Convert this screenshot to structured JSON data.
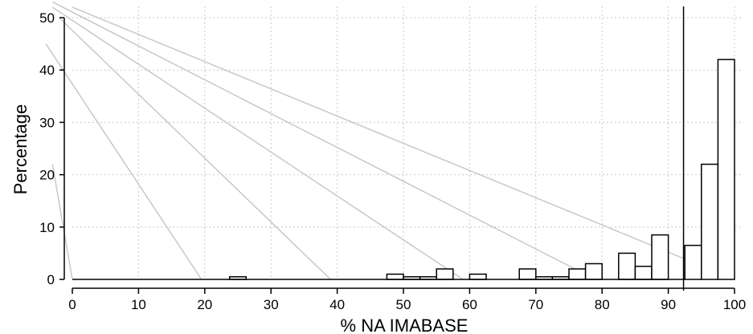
{
  "chart_data": {
    "type": "bar",
    "title": "",
    "xlabel": "% NA IMABASE",
    "ylabel": "Percentage",
    "xlim": [
      0,
      100
    ],
    "ylim": [
      0,
      50
    ],
    "xticks": [
      0,
      10,
      20,
      30,
      40,
      50,
      60,
      70,
      80,
      90,
      100
    ],
    "yticks": [
      0,
      10,
      20,
      30,
      40,
      50
    ],
    "grid": true,
    "bin_width": 2.5,
    "bins": [
      {
        "start": 23.75,
        "value": 0.5
      },
      {
        "start": 47.5,
        "value": 1.0
      },
      {
        "start": 50.0,
        "value": 0.5
      },
      {
        "start": 52.5,
        "value": 0.5
      },
      {
        "start": 55.0,
        "value": 2.0
      },
      {
        "start": 60.0,
        "value": 1.0
      },
      {
        "start": 67.5,
        "value": 2.0
      },
      {
        "start": 70.0,
        "value": 0.5
      },
      {
        "start": 72.5,
        "value": 0.5
      },
      {
        "start": 75.0,
        "value": 2.0
      },
      {
        "start": 77.5,
        "value": 3.0
      },
      {
        "start": 82.5,
        "value": 5.0
      },
      {
        "start": 85.0,
        "value": 2.5
      },
      {
        "start": 87.5,
        "value": 8.5
      },
      {
        "start": 92.5,
        "value": 6.5
      },
      {
        "start": 95.0,
        "value": 22.0
      },
      {
        "start": 97.5,
        "value": 42.0
      }
    ],
    "reference_line_x": 92.3,
    "baseline_range": [
      0,
      92.5
    ],
    "diagonal_lines": [
      {
        "from": [
          -3,
          22
        ],
        "to": [
          0,
          0
        ]
      },
      {
        "from": [
          -4,
          45
        ],
        "to": [
          19.5,
          0
        ]
      },
      {
        "from": [
          -2,
          50
        ],
        "to": [
          39,
          0
        ]
      },
      {
        "from": [
          -3,
          52
        ],
        "to": [
          59,
          0
        ]
      },
      {
        "from": [
          -3,
          53
        ],
        "to": [
          79,
          0
        ]
      },
      {
        "from": [
          0,
          52
        ],
        "to": [
          100,
          0
        ]
      }
    ]
  }
}
